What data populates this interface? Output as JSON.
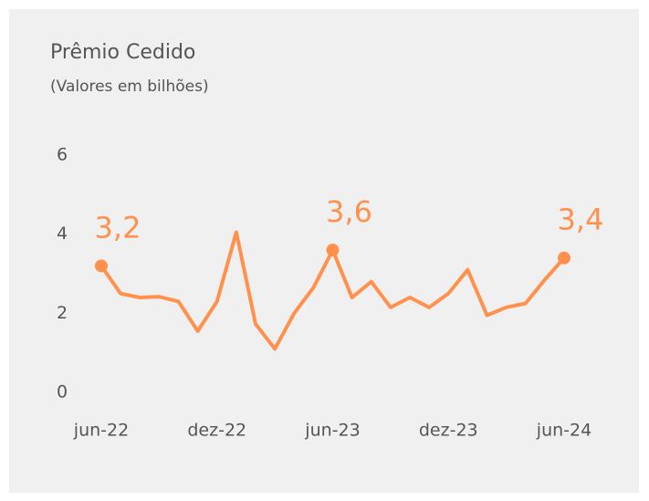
{
  "chart_data": {
    "type": "line",
    "title": "Prêmio Cedido",
    "subtitle": "(Valores em bilhões)",
    "categories": [
      "jun-22",
      null,
      null,
      null,
      null,
      null,
      "dez-22",
      null,
      null,
      null,
      null,
      null,
      "jun-23",
      null,
      null,
      null,
      null,
      null,
      "dez-23",
      null,
      null,
      null,
      null,
      null,
      "jun-24"
    ],
    "series": [
      {
        "name": "Prêmio Cedido",
        "color": "#ff914d",
        "values": [
          3.2,
          2.5,
          2.4,
          2.42,
          2.3,
          1.55,
          2.3,
          4.05,
          1.73,
          1.1,
          2.0,
          2.65,
          3.6,
          2.4,
          2.8,
          2.15,
          2.4,
          2.15,
          2.5,
          3.1,
          1.95,
          2.15,
          2.25,
          2.85,
          3.4
        ],
        "value_labels": [
          "3,2",
          null,
          null,
          null,
          null,
          null,
          null,
          null,
          null,
          null,
          null,
          null,
          "3,6",
          null,
          null,
          null,
          null,
          null,
          null,
          null,
          null,
          null,
          null,
          null,
          "3,4"
        ]
      }
    ],
    "ylim": [
      0,
      6
    ],
    "yticks": [
      0,
      2,
      4,
      6
    ],
    "grid": false
  }
}
